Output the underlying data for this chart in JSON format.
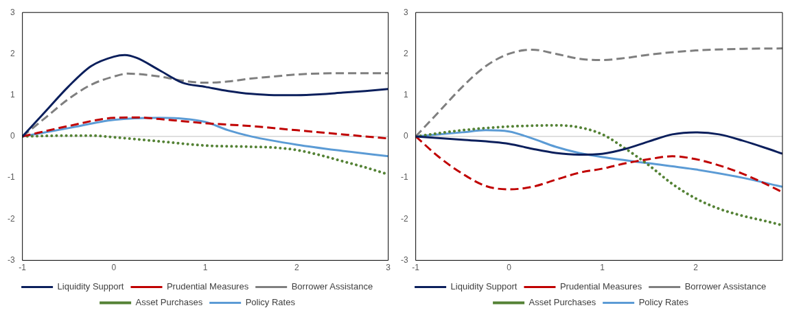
{
  "chart_data": [
    {
      "type": "line",
      "xlim": [
        -1,
        3
      ],
      "ylim": [
        -3,
        3
      ],
      "xticks": [
        -1,
        0,
        1,
        2,
        3
      ],
      "yticks": [
        -3,
        -2,
        -1,
        0,
        1,
        2,
        3
      ],
      "legend": "bottom",
      "marker": "none",
      "series": [
        {
          "name": "Liquidity Support",
          "color": "#0b1f5c",
          "line_style": "solid",
          "x": [
            -1,
            -0.75,
            -0.5,
            -0.25,
            0,
            0.12,
            0.25,
            0.5,
            0.75,
            1,
            1.25,
            1.5,
            1.75,
            2,
            2.25,
            2.5,
            2.75,
            3
          ],
          "values": [
            0,
            0.6,
            1.2,
            1.7,
            1.93,
            1.97,
            1.9,
            1.6,
            1.3,
            1.2,
            1.1,
            1.03,
            1,
            1,
            1.02,
            1.06,
            1.1,
            1.15
          ]
        },
        {
          "name": "Prudential Measures",
          "color": "#c00000",
          "line_style": "dashed",
          "x": [
            -1,
            -0.5,
            0,
            0.25,
            0.5,
            1,
            1.5,
            2,
            2.5,
            3
          ],
          "values": [
            0,
            0.25,
            0.45,
            0.46,
            0.42,
            0.32,
            0.25,
            0.15,
            0.05,
            -0.05
          ]
        },
        {
          "name": "Borrower Assistance",
          "color": "#7f7f7f",
          "line_style": "dashed",
          "x": [
            -1,
            -0.75,
            -0.5,
            -0.25,
            0,
            0.15,
            0.5,
            0.75,
            1,
            1.25,
            1.5,
            1.75,
            2,
            2.5,
            3
          ],
          "values": [
            0,
            0.45,
            0.9,
            1.25,
            1.45,
            1.52,
            1.45,
            1.35,
            1.3,
            1.33,
            1.4,
            1.45,
            1.5,
            1.53,
            1.53
          ]
        },
        {
          "name": "Asset Purchases",
          "color": "#548235",
          "line_style": "dotted",
          "x": [
            -1,
            -0.5,
            -0.25,
            0,
            0.5,
            1,
            1.5,
            1.75,
            2,
            2.25,
            2.5,
            2.75,
            3
          ],
          "values": [
            0,
            0.02,
            0.02,
            -0.02,
            -0.12,
            -0.22,
            -0.25,
            -0.27,
            -0.33,
            -0.45,
            -0.6,
            -0.75,
            -0.92
          ]
        },
        {
          "name": "Policy Rates",
          "color": "#5b9bd5",
          "line_style": "solid",
          "x": [
            -1,
            -0.5,
            0,
            0.5,
            0.75,
            1,
            1.25,
            1.5,
            2,
            2.5,
            3
          ],
          "values": [
            0,
            0.2,
            0.4,
            0.45,
            0.43,
            0.35,
            0.15,
            0,
            -0.2,
            -0.35,
            -0.48
          ]
        }
      ]
    },
    {
      "type": "line",
      "xlim": [
        -1,
        2.93
      ],
      "ylim": [
        -3,
        3
      ],
      "xticks": [
        -1,
        0,
        1,
        2
      ],
      "yticks": [
        -3,
        -2,
        -1,
        0,
        1,
        2,
        3
      ],
      "legend": "bottom",
      "marker": "none",
      "series": [
        {
          "name": "Liquidity Support",
          "color": "#0b1f5c",
          "line_style": "solid",
          "x": [
            -1,
            -0.5,
            0,
            0.25,
            0.5,
            0.75,
            1,
            1.25,
            1.5,
            1.75,
            2,
            2.25,
            2.5,
            2.75,
            2.93
          ],
          "values": [
            0,
            -0.08,
            -0.18,
            -0.3,
            -0.4,
            -0.44,
            -0.42,
            -0.3,
            -0.12,
            0.05,
            0.1,
            0.05,
            -0.1,
            -0.28,
            -0.42
          ]
        },
        {
          "name": "Prudential Measures",
          "color": "#c00000",
          "line_style": "dashed",
          "x": [
            -1,
            -0.75,
            -0.5,
            -0.25,
            0,
            0.25,
            0.5,
            0.75,
            1,
            1.25,
            1.5,
            1.75,
            2,
            2.25,
            2.5,
            2.75,
            2.93
          ],
          "values": [
            0,
            -0.5,
            -0.9,
            -1.2,
            -1.28,
            -1.22,
            -1.05,
            -0.88,
            -0.78,
            -0.65,
            -0.55,
            -0.48,
            -0.55,
            -0.7,
            -0.9,
            -1.15,
            -1.35
          ]
        },
        {
          "name": "Borrower Assistance",
          "color": "#7f7f7f",
          "line_style": "dashed",
          "x": [
            -1,
            -0.75,
            -0.5,
            -0.25,
            0,
            0.25,
            0.5,
            0.75,
            1,
            1.25,
            1.5,
            2,
            2.5,
            2.93
          ],
          "values": [
            0,
            0.6,
            1.2,
            1.7,
            2,
            2.1,
            2,
            1.88,
            1.85,
            1.9,
            1.98,
            2.08,
            2.12,
            2.13
          ]
        },
        {
          "name": "Asset Purchases",
          "color": "#548235",
          "line_style": "dotted",
          "x": [
            -1,
            -0.5,
            0,
            0.25,
            0.5,
            0.75,
            1,
            1.25,
            1.5,
            1.75,
            2,
            2.25,
            2.5,
            2.75,
            2.93
          ],
          "values": [
            0,
            0.15,
            0.24,
            0.26,
            0.27,
            0.22,
            0.05,
            -0.3,
            -0.7,
            -1.15,
            -1.5,
            -1.75,
            -1.92,
            -2.05,
            -2.15
          ]
        },
        {
          "name": "Policy Rates",
          "color": "#5b9bd5",
          "line_style": "solid",
          "x": [
            -1,
            -0.5,
            -0.25,
            0,
            0.25,
            0.5,
            0.75,
            1,
            1.5,
            2,
            2.5,
            2.93
          ],
          "values": [
            0,
            0.1,
            0.15,
            0.12,
            -0.05,
            -0.25,
            -0.4,
            -0.5,
            -0.65,
            -0.8,
            -1,
            -1.22
          ]
        }
      ]
    }
  ]
}
